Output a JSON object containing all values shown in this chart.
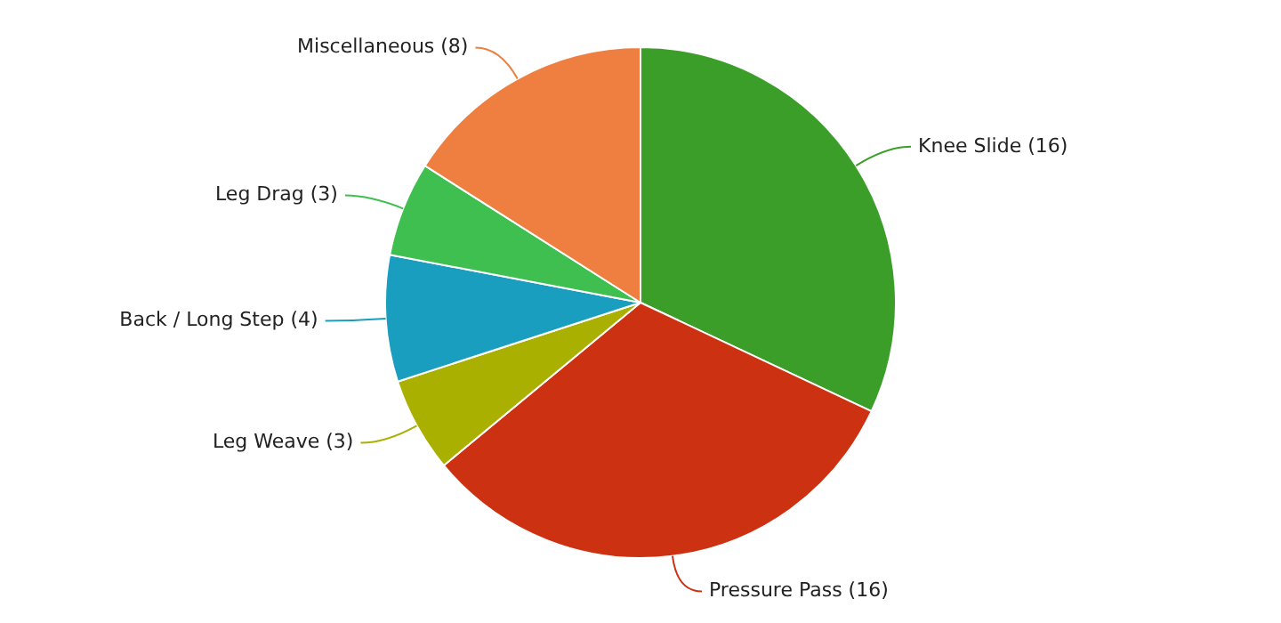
{
  "chart_data": {
    "type": "pie",
    "categories": [
      "Knee Slide",
      "Pressure Pass",
      "Leg Weave",
      "Back / Long Step",
      "Leg Drag",
      "Miscellaneous"
    ],
    "values": [
      16,
      16,
      3,
      4,
      3,
      8
    ],
    "value_labels": [
      "(16)",
      "(16)",
      "(3)",
      "(4)",
      "(3)",
      "(8)"
    ],
    "colors": [
      "#3a9e28",
      "#cc3212",
      "#a9b000",
      "#1a9ebf",
      "#3fbf4f",
      "#ee7f40"
    ],
    "legend": false
  }
}
